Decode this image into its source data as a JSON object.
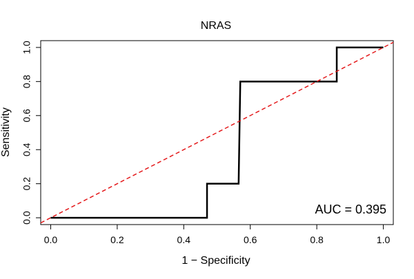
{
  "chart_data": {
    "type": "line",
    "title": "NRAS",
    "xlabel": "1 − Specificity",
    "ylabel": "Sensitivity",
    "xlim": [
      -0.03,
      1.03
    ],
    "ylim": [
      -0.04,
      1.04
    ],
    "x_ticks": [
      0.0,
      0.2,
      0.4,
      0.6,
      0.8,
      1.0
    ],
    "x_tick_labels": [
      "0.0",
      "0.2",
      "0.4",
      "0.6",
      "0.8",
      "1.0"
    ],
    "y_ticks": [
      0.0,
      0.2,
      0.4,
      0.6,
      0.8,
      1.0
    ],
    "y_tick_labels": [
      "0.0",
      "0.2",
      "0.4",
      "0.6",
      "0.8",
      "1.0"
    ],
    "grid": false,
    "series": [
      {
        "type": "step",
        "color": "#000000",
        "x": [
          0.0,
          0.47,
          0.47,
          0.565,
          0.57,
          0.86,
          0.86,
          1.0
        ],
        "y": [
          0.0,
          0.0,
          0.2,
          0.2,
          0.8,
          0.8,
          1.0,
          1.0
        ]
      },
      {
        "type": "reference-diagonal",
        "color": "#e41a1c",
        "dashed": true,
        "x": [
          -0.03,
          1.03
        ],
        "y": [
          -0.03,
          1.03
        ]
      }
    ],
    "annotations": [
      {
        "text": "AUC = 0.395",
        "position": "bottom-right"
      }
    ]
  }
}
